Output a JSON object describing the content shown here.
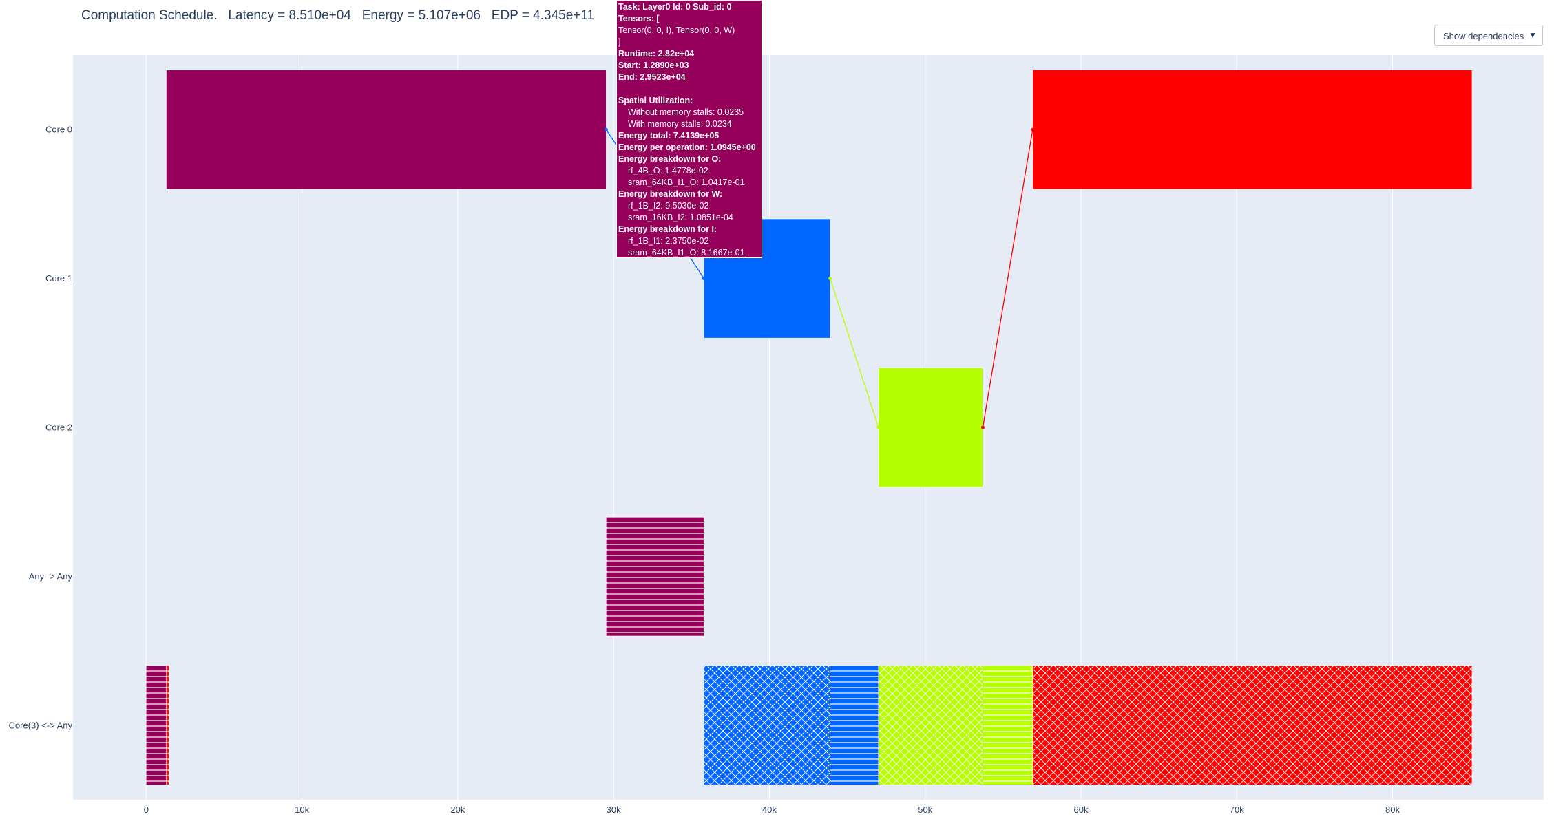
{
  "title": {
    "text": "Computation Schedule.",
    "latency": "Latency = 8.510e+04",
    "energy": "Energy = 5.107e+06",
    "edp": "EDP = 4.345e+11"
  },
  "dropdown": {
    "label": "Show dependencies",
    "arrow": "▼"
  },
  "colors": {
    "plot_bg": "#e5ecf6",
    "grid": "#ffffff",
    "layer0": "#94005a",
    "layer1": "#0066ff",
    "layer2": "#b6ff00",
    "layer3": "#ff0000",
    "axis_text": "#2a3f5f"
  },
  "chart_data": {
    "type": "gantt",
    "x_ticks": [
      {
        "value": 0,
        "label": "0"
      },
      {
        "value": 10000,
        "label": "10k"
      },
      {
        "value": 20000,
        "label": "20k"
      },
      {
        "value": 30000,
        "label": "30k"
      },
      {
        "value": 40000,
        "label": "40k"
      },
      {
        "value": 50000,
        "label": "50k"
      },
      {
        "value": 60000,
        "label": "60k"
      },
      {
        "value": 70000,
        "label": "70k"
      },
      {
        "value": 80000,
        "label": "80k"
      }
    ],
    "xlim": [
      -4700,
      89700
    ],
    "rows": [
      "Core 0",
      "Core 1",
      "Core 2",
      "Any -> Any",
      "Core(3) <-> Any"
    ],
    "tasks": [
      {
        "row": 0,
        "start": 1289,
        "end": 29523,
        "color": "layer0",
        "pattern": "solid"
      },
      {
        "row": 1,
        "start": 35800,
        "end": 43900,
        "color": "layer1",
        "pattern": "solid"
      },
      {
        "row": 2,
        "start": 47000,
        "end": 53700,
        "color": "layer2",
        "pattern": "solid"
      },
      {
        "row": 0,
        "start": 56900,
        "end": 85100,
        "color": "layer3",
        "pattern": "solid"
      },
      {
        "row": 3,
        "start": 29523,
        "end": 35800,
        "color": "layer0",
        "pattern": "hlines"
      },
      {
        "row": 4,
        "start": 0,
        "end": 1289,
        "color": "layer0",
        "pattern": "hlines"
      },
      {
        "row": 4,
        "start": 1289,
        "end": 1450,
        "color": "layer3",
        "pattern": "hlines"
      },
      {
        "row": 4,
        "start": 35800,
        "end": 43900,
        "color": "layer1",
        "pattern": "cross"
      },
      {
        "row": 4,
        "start": 43900,
        "end": 47000,
        "color": "layer1",
        "pattern": "hlines"
      },
      {
        "row": 4,
        "start": 47000,
        "end": 53700,
        "color": "layer2",
        "pattern": "cross"
      },
      {
        "row": 4,
        "start": 53700,
        "end": 56900,
        "color": "layer2",
        "pattern": "hlines"
      },
      {
        "row": 4,
        "start": 56900,
        "end": 85100,
        "color": "layer3",
        "pattern": "cross"
      }
    ],
    "dependencies": [
      {
        "from_row": 0,
        "from_x": 29523,
        "to_row": 1,
        "to_x": 35800,
        "color": "layer1"
      },
      {
        "from_row": 1,
        "from_x": 43900,
        "to_row": 2,
        "to_x": 47000,
        "color": "layer2"
      },
      {
        "from_row": 2,
        "from_x": 53700,
        "to_row": 0,
        "to_x": 56900,
        "color": "layer3"
      }
    ]
  },
  "hover": {
    "task_line": "Task: Layer0    Id: 0     Sub_id: 0",
    "tensors_label": "Tensors: [",
    "tensors_value": "Tensor(0, 0, I), Tensor(0, 0, W)",
    "tensors_close": "]",
    "runtime": "Runtime: 2.82e+04",
    "start": "Start: 1.2890e+03",
    "end": "End: 2.9523e+04",
    "spatial_label": "Spatial Utilization:",
    "without_stalls": "Without memory stalls: 0.0235",
    "with_stalls": "With memory stalls: 0.0234",
    "energy_total": "Energy total:  7.4139e+05",
    "energy_per_op": "Energy per operation: 1.0945e+00",
    "breakdown_o": "Energy breakdown for O:",
    "o_1": "rf_4B_O: 1.4778e-02",
    "o_2": "sram_64KB_I1_O: 1.0417e-01",
    "breakdown_w": "Energy breakdown for W:",
    "w_1": "rf_1B_I2: 9.5030e-02",
    "w_2": "sram_16KB_I2: 1.0851e-04",
    "breakdown_i": "Energy breakdown for I:",
    "i_1": "rf_1B_I1: 2.3750e-02",
    "i_2": "sram_64KB_I1_O: 8.1667e-01"
  }
}
